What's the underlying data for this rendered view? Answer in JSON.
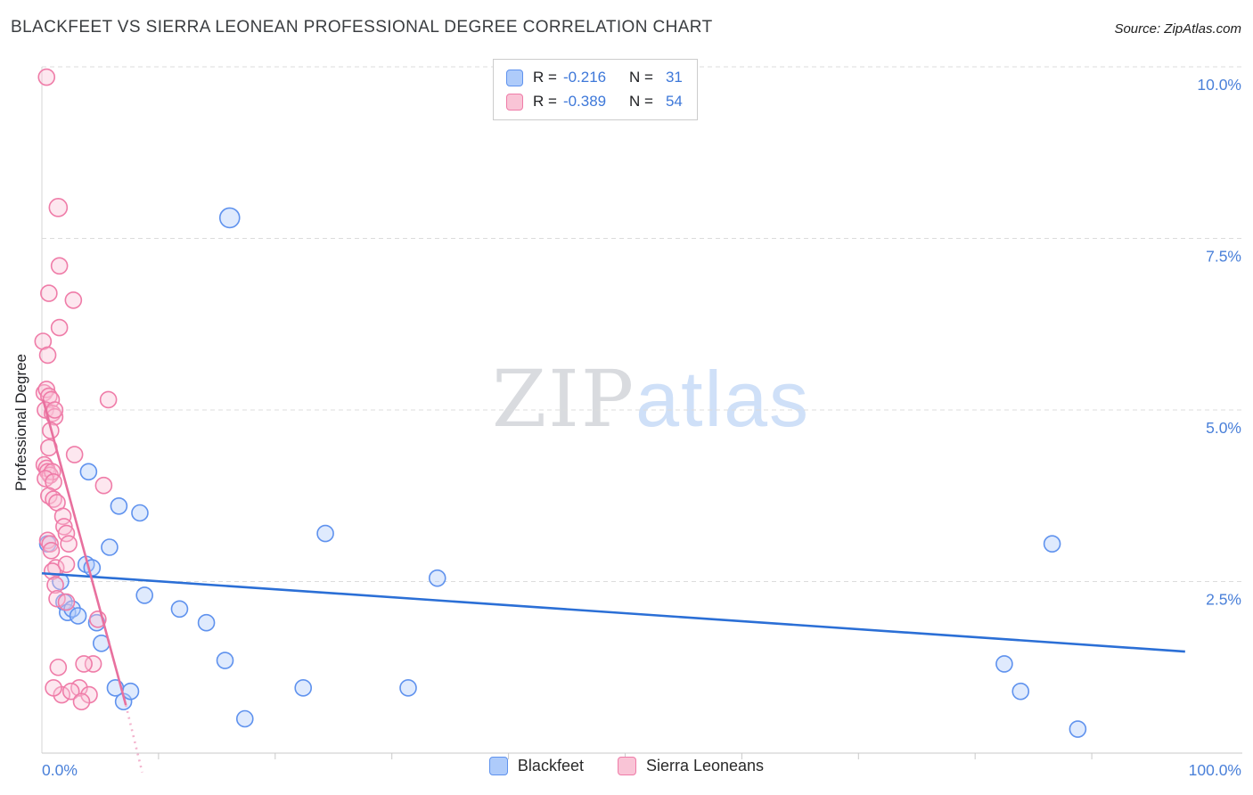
{
  "header": {
    "title": "BLACKFEET VS SIERRA LEONEAN PROFESSIONAL DEGREE CORRELATION CHART",
    "source": "Source: ZipAtlas.com"
  },
  "stats_legend": {
    "rows": [
      {
        "r_label": "R =",
        "r_value": "-0.216",
        "n_label": "N =",
        "n_value": "31"
      },
      {
        "r_label": "R =",
        "r_value": "-0.389",
        "n_label": "N =",
        "n_value": "54"
      }
    ]
  },
  "chart_data": {
    "type": "scatter",
    "title": "BLACKFEET VS SIERRA LEONEAN PROFESSIONAL DEGREE CORRELATION CHART",
    "xlabel": "",
    "ylabel": "Professional Degree",
    "xlim": [
      0,
      100
    ],
    "ylim": [
      0,
      10.5
    ],
    "grid": "horizontal-dashed",
    "legend_position": "bottom-center",
    "watermark": {
      "part1": "ZIP",
      "part2": "atlas"
    },
    "x_ticks": [
      {
        "value": 0,
        "label": "0.0%",
        "anchor": "start"
      },
      {
        "value": 100,
        "label": "100.0%",
        "anchor": "end"
      }
    ],
    "x_minor_ticks": [
      10,
      20,
      30,
      40,
      50,
      60,
      70,
      80,
      90
    ],
    "y_ticks": [
      {
        "value": 2.5,
        "label": "2.5%"
      },
      {
        "value": 5,
        "label": "5.0%"
      },
      {
        "value": 7.5,
        "label": "7.5%"
      },
      {
        "value": 10,
        "label": "10.0%"
      }
    ],
    "series": [
      {
        "name": "Blackfeet",
        "R": -0.216,
        "N": 31,
        "fill": "#aecbfa",
        "stroke": "#5f92ee",
        "points": [
          [
            0.5,
            3.05
          ],
          [
            1.6,
            2.5
          ],
          [
            1.9,
            2.2
          ],
          [
            2.2,
            2.05
          ],
          [
            2.6,
            2.1
          ],
          [
            3.1,
            2.0
          ],
          [
            3.8,
            2.75
          ],
          [
            4.3,
            2.7
          ],
          [
            4.7,
            1.9
          ],
          [
            5.1,
            1.6
          ],
          [
            5.8,
            3.0
          ],
          [
            6.3,
            0.95
          ],
          [
            6.6,
            3.6
          ],
          [
            7.0,
            0.75
          ],
          [
            7.6,
            0.9
          ],
          [
            8.4,
            3.5
          ],
          [
            8.8,
            2.3
          ],
          [
            11.8,
            2.1
          ],
          [
            14.1,
            1.9
          ],
          [
            16.1,
            7.8,
            11
          ],
          [
            15.7,
            1.35
          ],
          [
            17.4,
            0.5
          ],
          [
            22.4,
            0.95
          ],
          [
            24.3,
            3.2
          ],
          [
            31.4,
            0.95
          ],
          [
            33.9,
            2.55
          ],
          [
            82.5,
            1.3
          ],
          [
            83.9,
            0.9
          ],
          [
            86.6,
            3.05
          ],
          [
            88.8,
            0.35
          ],
          [
            4.0,
            4.1
          ]
        ]
      },
      {
        "name": "Sierra Leoneans",
        "R": -0.389,
        "N": 54,
        "fill": "#f9c4d6",
        "stroke": "#ef7ca8",
        "points": [
          [
            0.4,
            9.85
          ],
          [
            1.4,
            7.95,
            10
          ],
          [
            1.5,
            7.1
          ],
          [
            0.6,
            6.7
          ],
          [
            2.7,
            6.6
          ],
          [
            1.5,
            6.2
          ],
          [
            0.1,
            6.0
          ],
          [
            0.5,
            5.8
          ],
          [
            0.2,
            5.25
          ],
          [
            0.4,
            5.3
          ],
          [
            0.6,
            5.2
          ],
          [
            0.8,
            5.15
          ],
          [
            5.7,
            5.15
          ],
          [
            0.3,
            5.0
          ],
          [
            0.9,
            4.95
          ],
          [
            1.1,
            4.9
          ],
          [
            0.75,
            4.7
          ],
          [
            0.6,
            4.45
          ],
          [
            2.8,
            4.35
          ],
          [
            0.2,
            4.2
          ],
          [
            0.4,
            4.15
          ],
          [
            0.5,
            4.1
          ],
          [
            0.7,
            4.05
          ],
          [
            0.9,
            4.1
          ],
          [
            0.3,
            4.0
          ],
          [
            1.0,
            3.95
          ],
          [
            5.3,
            3.9
          ],
          [
            0.6,
            3.75
          ],
          [
            1.0,
            3.7
          ],
          [
            1.3,
            3.65
          ],
          [
            1.8,
            3.45
          ],
          [
            1.9,
            3.3
          ],
          [
            2.1,
            3.2
          ],
          [
            0.5,
            3.1
          ],
          [
            0.7,
            3.05
          ],
          [
            2.3,
            3.05
          ],
          [
            0.8,
            2.95
          ],
          [
            1.2,
            2.7
          ],
          [
            2.1,
            2.75
          ],
          [
            0.9,
            2.65
          ],
          [
            1.15,
            2.45
          ],
          [
            1.3,
            2.25
          ],
          [
            2.1,
            2.2
          ],
          [
            4.8,
            1.95
          ],
          [
            4.4,
            1.3
          ],
          [
            3.6,
            1.3
          ],
          [
            3.2,
            0.95
          ],
          [
            4.05,
            0.85
          ],
          [
            1.7,
            0.85
          ],
          [
            2.5,
            0.9
          ],
          [
            3.4,
            0.75
          ],
          [
            1.0,
            0.95
          ],
          [
            1.4,
            1.25
          ],
          [
            1.1,
            5.0
          ]
        ]
      }
    ],
    "trendlines": [
      {
        "series": "Blackfeet",
        "color": "#2b6fd6",
        "dash": false,
        "x1": 0,
        "y1": 2.62,
        "x2": 98,
        "y2": 1.48
      },
      {
        "series": "Sierra Leoneans",
        "color": "#e8709e",
        "dash": false,
        "x1": 0.1,
        "y1": 5.15,
        "x2": 7.2,
        "y2": 0.7
      },
      {
        "series": "Sierra Leoneans",
        "color": "#f3b3cd",
        "dash": true,
        "x1": 7.2,
        "y1": 0.7,
        "x2": 8.6,
        "y2": -0.28
      }
    ]
  }
}
